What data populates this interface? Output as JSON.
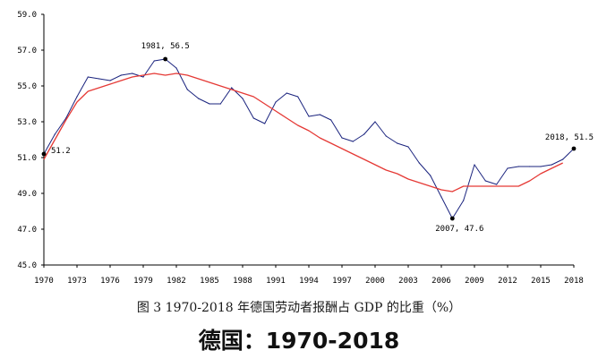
{
  "caption": "图 3  1970-2018 年德国劳动者报酬占 GDP 的比重（%）",
  "subtitle": "德国：1970-2018",
  "colors": {
    "series": "#1a237e",
    "trend": "#e53935",
    "axis": "#000000"
  },
  "chart_data": {
    "type": "line",
    "title": "",
    "xlabel": "",
    "ylabel": "",
    "xlim": [
      1970,
      2018
    ],
    "ylim": [
      45.0,
      59.0
    ],
    "yticks": [
      "45.0",
      "47.0",
      "49.0",
      "51.0",
      "53.0",
      "55.0",
      "57.0",
      "59.0"
    ],
    "xticks": [
      "1970",
      "1973",
      "1976",
      "1979",
      "1982",
      "1985",
      "1988",
      "1991",
      "1994",
      "1997",
      "2000",
      "2003",
      "2006",
      "2009",
      "2012",
      "2015",
      "2018"
    ],
    "grid": false,
    "legend": "none",
    "series": [
      {
        "x": [
          1970,
          1971,
          1972,
          1973,
          1974,
          1975,
          1976,
          1977,
          1978,
          1979,
          1980,
          1981,
          1982,
          1983,
          1984,
          1985,
          1986,
          1987,
          1988,
          1989,
          1990,
          1991,
          1992,
          1993,
          1994,
          1995,
          1996,
          1997,
          1998,
          1999,
          2000,
          2001,
          2002,
          2003,
          2004,
          2005,
          2006,
          2007,
          2008,
          2009,
          2010,
          2011,
          2012,
          2013,
          2014,
          2015,
          2016,
          2017,
          2018
        ],
        "values": [
          51.2,
          52.3,
          53.2,
          54.4,
          55.5,
          55.4,
          55.3,
          55.6,
          55.7,
          55.5,
          56.4,
          56.5,
          56.0,
          54.8,
          54.3,
          54.0,
          54.0,
          54.9,
          54.3,
          53.2,
          52.9,
          54.1,
          54.6,
          54.4,
          53.3,
          53.4,
          53.1,
          52.1,
          51.9,
          52.3,
          53.0,
          52.2,
          51.8,
          51.6,
          50.7,
          50.0,
          48.8,
          47.6,
          48.6,
          50.6,
          49.7,
          49.5,
          50.4,
          50.5,
          50.5,
          50.5,
          50.6,
          50.9,
          51.5
        ]
      },
      {
        "x": [
          1970,
          1971,
          1972,
          1973,
          1974,
          1975,
          1976,
          1977,
          1978,
          1979,
          1980,
          1981,
          1982,
          1983,
          1984,
          1985,
          1986,
          1987,
          1988,
          1989,
          1990,
          1991,
          1992,
          1993,
          1994,
          1995,
          1996,
          1997,
          1998,
          1999,
          2000,
          2001,
          2002,
          2003,
          2004,
          2005,
          2006,
          2007,
          2008,
          2009,
          2010,
          2011,
          2012,
          2013,
          2014,
          2015,
          2016,
          2017
        ],
        "values": [
          50.9,
          52.0,
          53.1,
          54.1,
          54.7,
          54.9,
          55.1,
          55.3,
          55.5,
          55.6,
          55.7,
          55.6,
          55.7,
          55.6,
          55.4,
          55.2,
          55.0,
          54.8,
          54.6,
          54.4,
          54.0,
          53.6,
          53.2,
          52.8,
          52.5,
          52.1,
          51.8,
          51.5,
          51.2,
          50.9,
          50.6,
          50.3,
          50.1,
          49.8,
          49.6,
          49.4,
          49.2,
          49.1,
          49.4,
          49.4,
          49.4,
          49.4,
          49.4,
          49.4,
          49.7,
          50.1,
          50.4,
          50.7
        ]
      }
    ],
    "annotations": [
      {
        "x": 1970,
        "y": 51.2,
        "label": "51.2"
      },
      {
        "x": 1981,
        "y": 56.5,
        "label": "1981, 56.5"
      },
      {
        "x": 2007,
        "y": 47.6,
        "label": "2007, 47.6"
      },
      {
        "x": 2018,
        "y": 51.5,
        "label": "2018, 51.5"
      }
    ]
  }
}
